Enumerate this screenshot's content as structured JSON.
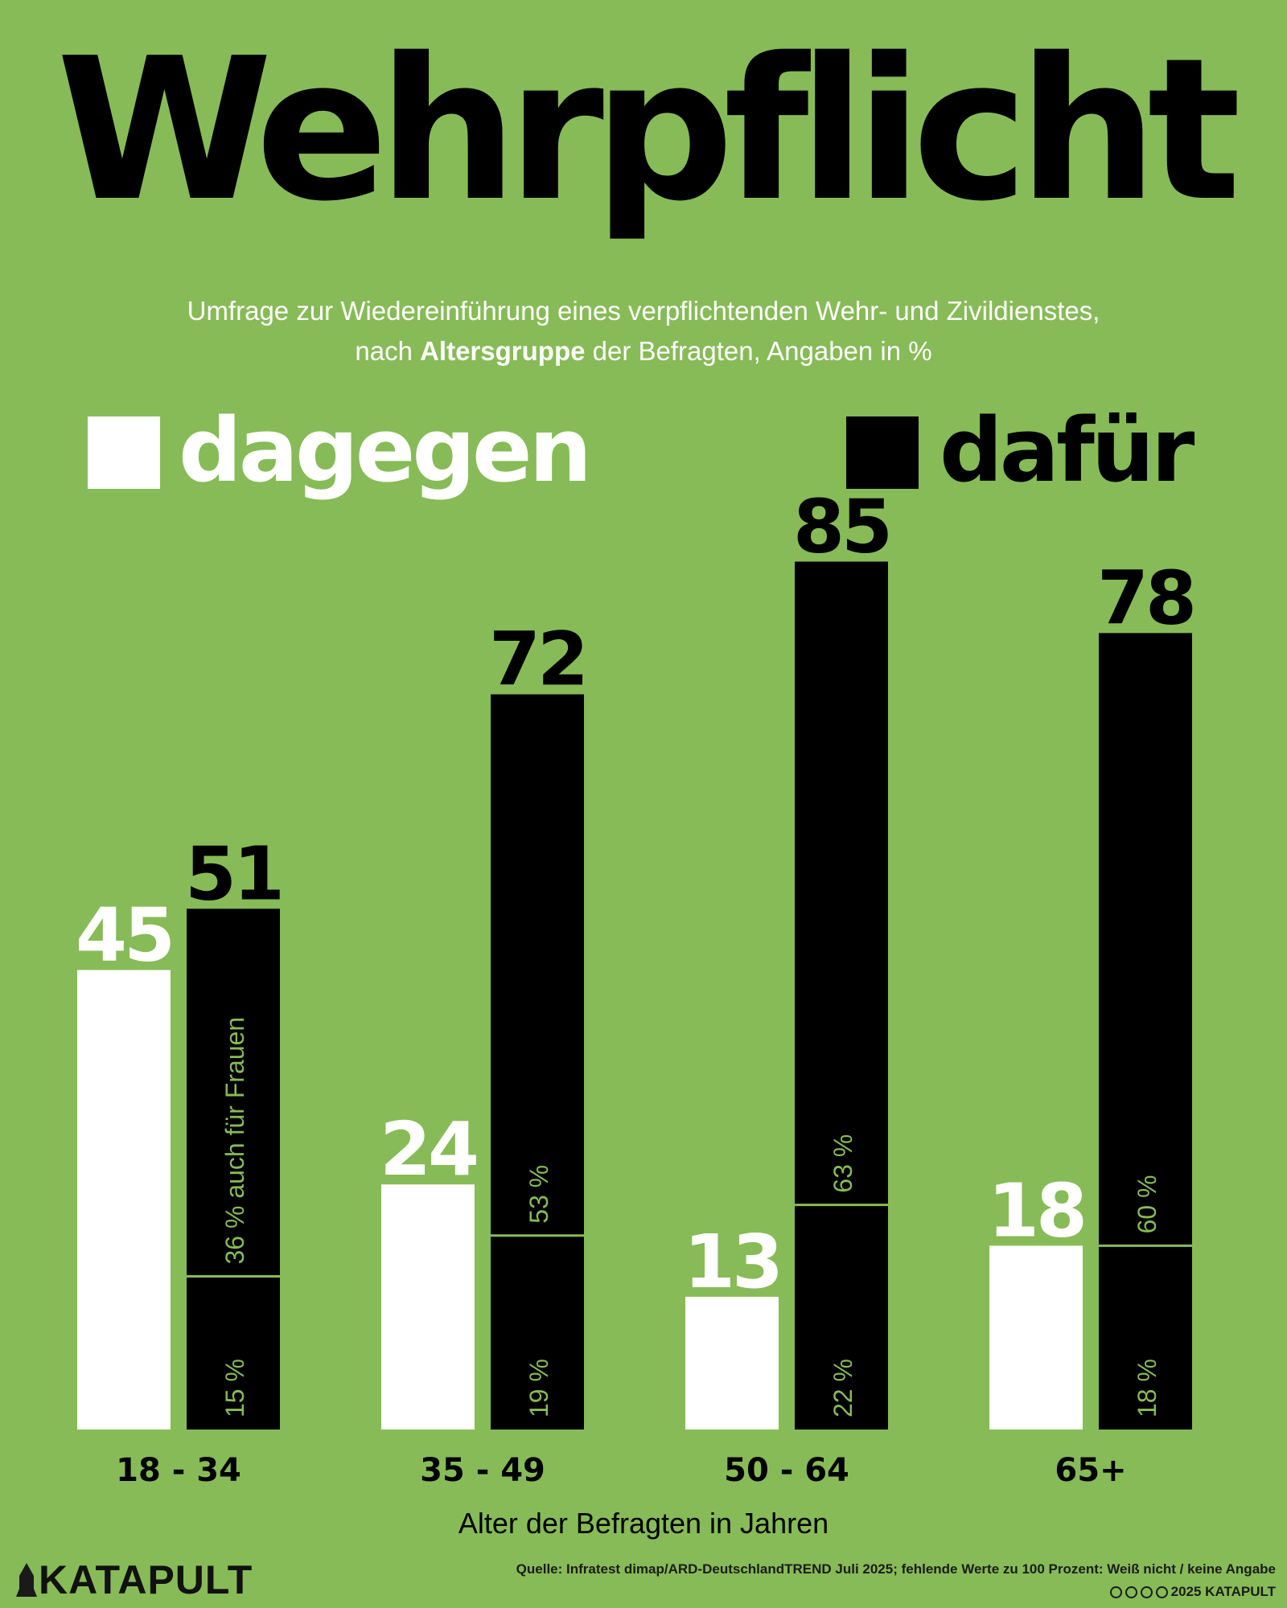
{
  "title": "Wehrpflicht",
  "subtitle": {
    "line1": "Umfrage zur Wiedereinführung eines verpflichtenden Wehr- und Zivildienstes,",
    "line2_before": "nach ",
    "line2_em": "Altersgruppe",
    "line2_after": " der Befragten, Angaben in %"
  },
  "legend": {
    "against": "dagegen",
    "for": "dafür"
  },
  "colors": {
    "background": "#87bb57",
    "against": "#ffffff",
    "for": "#000000",
    "segment_label": "#87bb57"
  },
  "chart_data": {
    "type": "bar",
    "categories": [
      "18 - 34",
      "35 - 49",
      "50 - 64",
      "65+"
    ],
    "series": [
      {
        "name": "dagegen",
        "values": [
          45,
          24,
          13,
          18
        ]
      },
      {
        "name": "dafür",
        "values": [
          51,
          72,
          85,
          78
        ]
      }
    ],
    "for_breakdown": {
      "lower": [
        "15 %",
        "19 %",
        "22 %",
        "18 %"
      ],
      "upper": [
        "36 % auch für Frauen",
        "53 %",
        "63 %",
        "60 %"
      ]
    },
    "xlabel": "Alter der Befragten in Jahren",
    "ylabel": "",
    "ylim": [
      0,
      100
    ]
  },
  "footer": {
    "logo": "KATAPULT",
    "source": "Quelle: Infratest dimap/ARD-DeutschlandTREND Juli 2025; fehlende Werte zu 100 Prozent: Weiß nicht / keine Angabe",
    "copyright": "2025 KATAPULT"
  }
}
